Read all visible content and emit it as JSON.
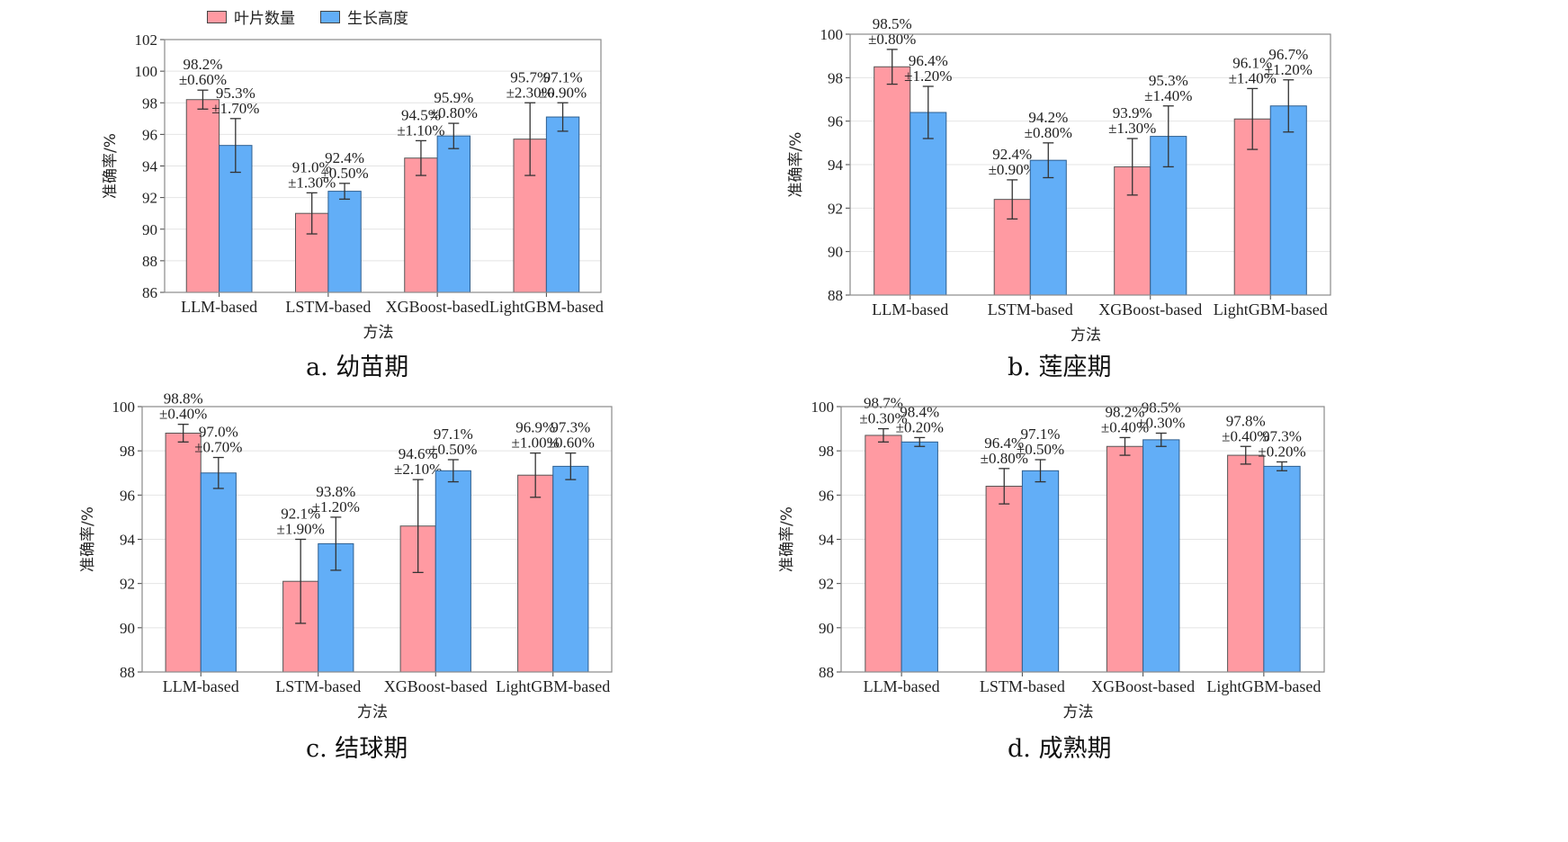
{
  "legend": [
    {
      "label": "叶片数量",
      "color": "#ff9aa2"
    },
    {
      "label": "生长高度",
      "color": "#62aef7"
    }
  ],
  "chart_data": [
    {
      "type": "bar",
      "caption": "a. 幼苗期",
      "xlabel": "方法",
      "ylabel": "准确率/%",
      "ylim": [
        86,
        102
      ],
      "yticks": [
        86,
        88,
        90,
        92,
        94,
        96,
        98,
        100,
        102
      ],
      "grid": true,
      "categories": [
        "LLM-based",
        "LSTM-based",
        "XGBoost-based",
        "LightGBM-based"
      ],
      "series": [
        {
          "name": "叶片数量",
          "values": [
            98.2,
            91.0,
            94.5,
            95.7
          ],
          "errors": [
            0.6,
            1.3,
            1.1,
            2.3
          ],
          "labels": [
            [
              "98.2%",
              "±0.60%"
            ],
            [
              "91.0%",
              "±1.30%"
            ],
            [
              "94.5%",
              "±1.10%"
            ],
            [
              "95.7%",
              "±2.30%"
            ]
          ]
        },
        {
          "name": "生长高度",
          "values": [
            95.3,
            92.4,
            95.9,
            97.1
          ],
          "errors": [
            1.7,
            0.5,
            0.8,
            0.9
          ],
          "labels": [
            [
              "95.3%",
              "±1.70%"
            ],
            [
              "92.4%",
              "±0.50%"
            ],
            [
              "95.9%",
              "±0.80%"
            ],
            [
              "97.1%",
              "±0.90%"
            ]
          ]
        }
      ]
    },
    {
      "type": "bar",
      "caption": "b. 莲座期",
      "xlabel": "方法",
      "ylabel": "准确率/%",
      "ylim": [
        88,
        100
      ],
      "yticks": [
        88,
        90,
        92,
        94,
        96,
        98,
        100
      ],
      "grid": true,
      "categories": [
        "LLM-based",
        "LSTM-based",
        "XGBoost-based",
        "LightGBM-based"
      ],
      "series": [
        {
          "name": "叶片数量",
          "values": [
            98.5,
            92.4,
            93.9,
            96.1
          ],
          "errors": [
            0.8,
            0.9,
            1.3,
            1.4
          ],
          "labels": [
            [
              "98.5%",
              "±0.80%"
            ],
            [
              "92.4%",
              "±0.90%"
            ],
            [
              "93.9%",
              "±1.30%"
            ],
            [
              "96.1%",
              "±1.40%"
            ]
          ]
        },
        {
          "name": "生长高度",
          "values": [
            96.4,
            94.2,
            95.3,
            96.7
          ],
          "errors": [
            1.2,
            0.8,
            1.4,
            1.2
          ],
          "labels": [
            [
              "96.4%",
              "±1.20%"
            ],
            [
              "94.2%",
              "±0.80%"
            ],
            [
              "95.3%",
              "±1.40%"
            ],
            [
              "96.7%",
              "±1.20%"
            ]
          ]
        }
      ]
    },
    {
      "type": "bar",
      "caption": "c. 结球期",
      "xlabel": "方法",
      "ylabel": "准确率/%",
      "ylim": [
        88,
        100
      ],
      "yticks": [
        88,
        90,
        92,
        94,
        96,
        98,
        100
      ],
      "grid": true,
      "categories": [
        "LLM-based",
        "LSTM-based",
        "XGBoost-based",
        "LightGBM-based"
      ],
      "series": [
        {
          "name": "叶片数量",
          "values": [
            98.8,
            92.1,
            94.6,
            96.9
          ],
          "errors": [
            0.4,
            1.9,
            2.1,
            1.0
          ],
          "labels": [
            [
              "98.8%",
              "±0.40%"
            ],
            [
              "92.1%",
              "±1.90%"
            ],
            [
              "94.6%",
              "±2.10%"
            ],
            [
              "96.9%",
              "±1.00%"
            ]
          ]
        },
        {
          "name": "生长高度",
          "values": [
            97.0,
            93.8,
            97.1,
            97.3
          ],
          "errors": [
            0.7,
            1.2,
            0.5,
            0.6
          ],
          "labels": [
            [
              "97.0%",
              "±0.70%"
            ],
            [
              "93.8%",
              "±1.20%"
            ],
            [
              "97.1%",
              "±0.50%"
            ],
            [
              "97.3%",
              "±0.60%"
            ]
          ]
        }
      ]
    },
    {
      "type": "bar",
      "caption": "d. 成熟期",
      "xlabel": "方法",
      "ylabel": "准确率/%",
      "ylim": [
        88,
        100
      ],
      "yticks": [
        88,
        90,
        92,
        94,
        96,
        98,
        100
      ],
      "grid": true,
      "categories": [
        "LLM-based",
        "LSTM-based",
        "XGBoost-based",
        "LightGBM-based"
      ],
      "series": [
        {
          "name": "叶片数量",
          "values": [
            98.7,
            96.4,
            98.2,
            97.8
          ],
          "errors": [
            0.3,
            0.8,
            0.4,
            0.4
          ],
          "labels": [
            [
              "98.7%",
              "±0.30%"
            ],
            [
              "96.4%",
              "±0.80%"
            ],
            [
              "98.2%",
              "±0.40%"
            ],
            [
              "97.8%",
              "±0.40%"
            ]
          ]
        },
        {
          "name": "生长高度",
          "values": [
            98.4,
            97.1,
            98.5,
            97.3
          ],
          "errors": [
            0.2,
            0.5,
            0.3,
            0.2
          ],
          "labels": [
            [
              "98.4%",
              "±0.20%"
            ],
            [
              "97.1%",
              "±0.50%"
            ],
            [
              "98.5%",
              "±0.30%"
            ],
            [
              "97.3%",
              "±0.20%"
            ]
          ]
        }
      ]
    }
  ]
}
